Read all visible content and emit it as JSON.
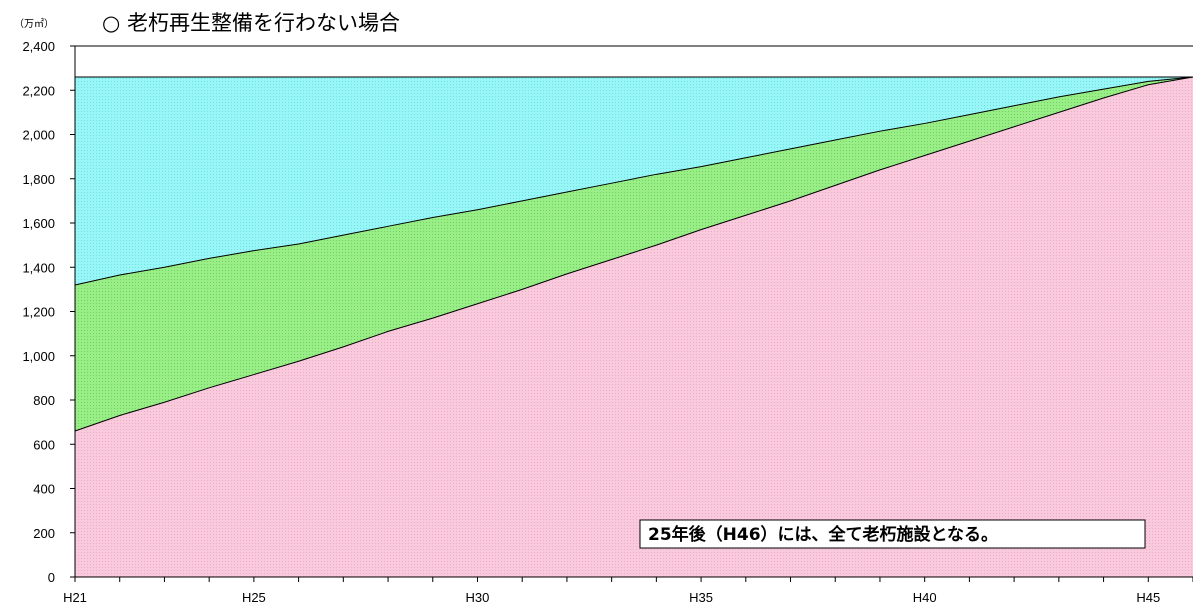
{
  "chart_data": {
    "type": "area",
    "title": "○ 老朽再生整備を行わない場合",
    "unit_label": "（万㎡）",
    "ylim": [
      0,
      2400
    ],
    "y_ticks": [
      0,
      200,
      400,
      600,
      800,
      1000,
      1200,
      1400,
      1600,
      1800,
      2000,
      2200,
      2400
    ],
    "y_tick_labels": [
      "0",
      "200",
      "400",
      "600",
      "800",
      "1,000",
      "1,200",
      "1,400",
      "1,600",
      "1,800",
      "2,000",
      "2,200",
      "2,400"
    ],
    "x": [
      21,
      22,
      23,
      24,
      25,
      26,
      27,
      28,
      29,
      30,
      31,
      32,
      33,
      34,
      35,
      36,
      37,
      38,
      39,
      40,
      41,
      42,
      43,
      44,
      45,
      46
    ],
    "x_range": [
      21,
      46
    ],
    "x_tick_positions": [
      21,
      25,
      30,
      35,
      40,
      45
    ],
    "x_tick_labels": [
      "H21",
      "H25",
      "H30",
      "H35",
      "H40",
      "H45"
    ],
    "series": [
      {
        "values": [
          660,
          730,
          790,
          855,
          915,
          975,
          1040,
          1110,
          1170,
          1235,
          1300,
          1370,
          1435,
          1500,
          1570,
          1635,
          1700,
          1770,
          1840,
          1905,
          1970,
          2035,
          2100,
          2165,
          2225,
          2260
        ],
        "color": "#f9c9dc"
      },
      {
        "values": [
          1320,
          1365,
          1400,
          1440,
          1475,
          1505,
          1545,
          1585,
          1625,
          1660,
          1700,
          1740,
          1780,
          1820,
          1855,
          1895,
          1935,
          1975,
          2015,
          2050,
          2090,
          2130,
          2170,
          2205,
          2240,
          2260
        ],
        "color": "#99ee88"
      },
      {
        "values": [
          2260,
          2260,
          2260,
          2260,
          2260,
          2260,
          2260,
          2260,
          2260,
          2260,
          2260,
          2260,
          2260,
          2260,
          2260,
          2260,
          2260,
          2260,
          2260,
          2260,
          2260,
          2260,
          2260,
          2260,
          2260,
          2260
        ],
        "color": "#99f6f6"
      }
    ],
    "annotation": "25年後（H46）には、全て老朽施設となる。",
    "grid": false
  }
}
